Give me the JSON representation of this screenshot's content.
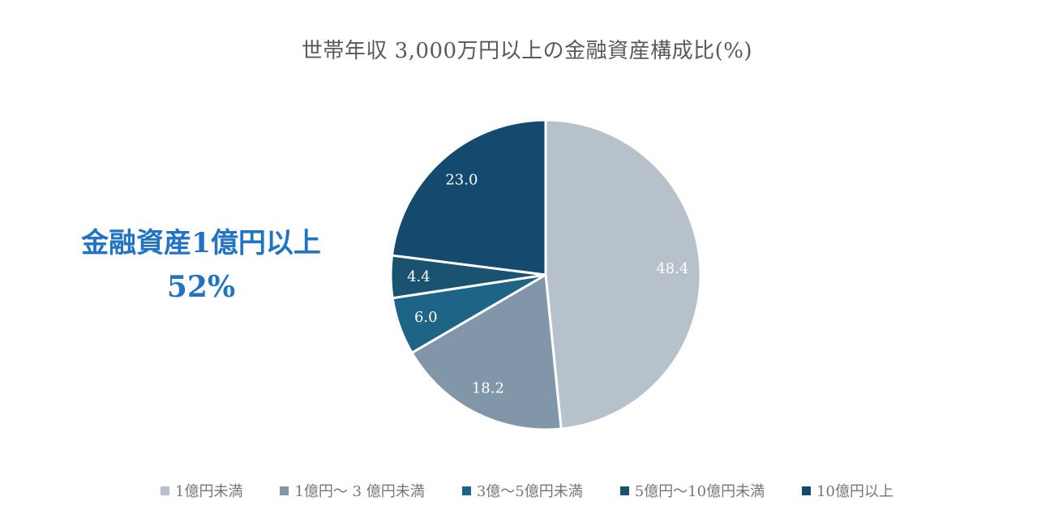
{
  "title": "世帯年収 3,000万円以上の金融資産構成比(%)",
  "annotation": {
    "line1": "金融資産1億円以上",
    "line2": "52%",
    "color": "#2273C3"
  },
  "colors": {
    "background": "#FFFFFF",
    "title_text": "#595959",
    "legend_text": "#777777",
    "slice_border": "#FFFFFF"
  },
  "chart_data": {
    "type": "pie",
    "title": "世帯年収 3,000万円以上の金融資産構成比(%)",
    "start_angle_deg": 0,
    "direction": "clockwise",
    "legend_position": "bottom",
    "annotation": "金融資産1億円以上 52%",
    "slices": [
      {
        "label": "1億円未満",
        "value": 48.4,
        "color": "#B7C1CC",
        "label_color": "#FFFFFF"
      },
      {
        "label": "1億円～ 3 億円未満",
        "value": 18.2,
        "color": "#8296A9",
        "label_color": "#FFFFFF"
      },
      {
        "label": "3億～5億円未満",
        "value": 6.0,
        "color": "#1E6487",
        "label_color": "#FFFFFF"
      },
      {
        "label": "5億円～10億円未満",
        "value": 4.4,
        "color": "#19536F",
        "label_color": "#FFFFFF"
      },
      {
        "label": "10億円以上",
        "value": 23.0,
        "color": "#134A6D",
        "label_color": "#FFFFFF"
      }
    ]
  }
}
